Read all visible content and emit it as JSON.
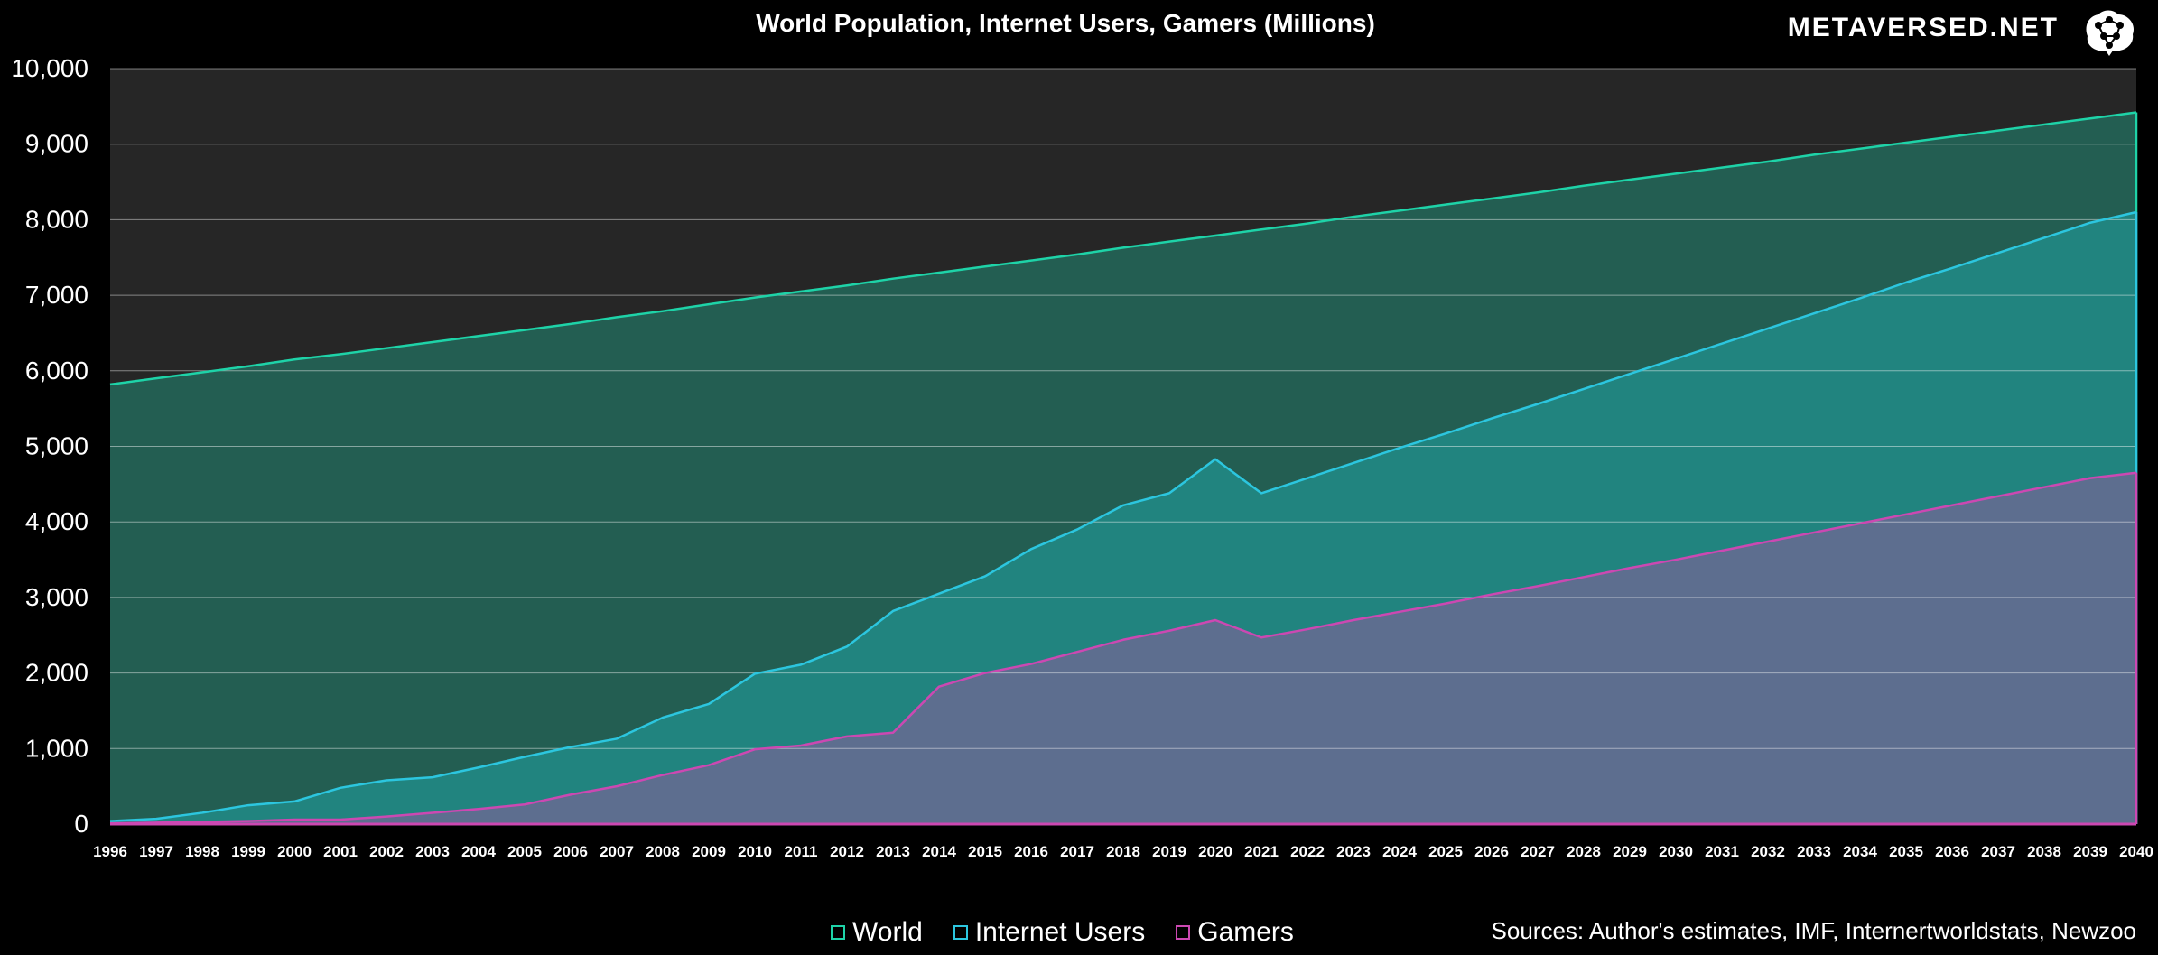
{
  "chart_data": {
    "type": "area",
    "title": "World Population, Internet Users, Gamers (Millions)",
    "x": [
      1996,
      1997,
      1998,
      1999,
      2000,
      2001,
      2002,
      2003,
      2004,
      2005,
      2006,
      2007,
      2008,
      2009,
      2010,
      2011,
      2012,
      2013,
      2014,
      2015,
      2016,
      2017,
      2018,
      2019,
      2020,
      2021,
      2022,
      2023,
      2024,
      2025,
      2026,
      2027,
      2028,
      2029,
      2030,
      2031,
      2032,
      2033,
      2034,
      2035,
      2036,
      2037,
      2038,
      2039,
      2040
    ],
    "ylim": [
      0,
      10000
    ],
    "yticks": [
      0,
      1000,
      2000,
      3000,
      4000,
      5000,
      6000,
      7000,
      8000,
      9000,
      10000
    ],
    "ytick_labels": [
      "0",
      "1,000",
      "2,000",
      "3,000",
      "4,000",
      "5,000",
      "6,000",
      "7,000",
      "8,000",
      "9,000",
      "10,000"
    ],
    "grid": true,
    "series": [
      {
        "name": "World",
        "color": "#1ed3a8",
        "fill": "#235e52",
        "values": [
          5820,
          5900,
          5980,
          6060,
          6150,
          6220,
          6300,
          6380,
          6460,
          6540,
          6620,
          6710,
          6790,
          6880,
          6970,
          7050,
          7130,
          7220,
          7300,
          7380,
          7460,
          7540,
          7630,
          7710,
          7790,
          7870,
          7950,
          8040,
          8120,
          8200,
          8280,
          8360,
          8450,
          8530,
          8610,
          8690,
          8770,
          8860,
          8940,
          9020,
          9100,
          9180,
          9260,
          9340,
          9420
        ]
      },
      {
        "name": "Internet Users",
        "color": "#2cc6df",
        "fill": "#21847f",
        "values": [
          40,
          70,
          150,
          250,
          300,
          480,
          580,
          620,
          750,
          890,
          1020,
          1130,
          1410,
          1590,
          1990,
          2110,
          2350,
          2820,
          3050,
          3280,
          3640,
          3900,
          4220,
          4380,
          4830,
          4380,
          4580,
          4780,
          4980,
          5170,
          5370,
          5560,
          5760,
          5960,
          6160,
          6360,
          6560,
          6760,
          6960,
          7170,
          7360,
          7560,
          7760,
          7960,
          8100
        ]
      },
      {
        "name": "Gamers",
        "color": "#cc48b2",
        "fill": "#5d6e8f",
        "values": [
          10,
          20,
          30,
          40,
          60,
          60,
          100,
          150,
          200,
          260,
          390,
          500,
          650,
          780,
          990,
          1040,
          1160,
          1210,
          1820,
          2000,
          2120,
          2280,
          2440,
          2560,
          2700,
          2470,
          2580,
          2700,
          2810,
          2920,
          3040,
          3150,
          3270,
          3390,
          3500,
          3620,
          3740,
          3860,
          3980,
          4100,
          4220,
          4340,
          4460,
          4580,
          4650
        ]
      }
    ],
    "legend_position": "bottom-center"
  },
  "brand": {
    "name": "METAVERSED.NET",
    "logo_icon": "brain-network-icon"
  },
  "source_note": "Sources: Author's estimates, IMF, Internertworldstats, Newzoo"
}
